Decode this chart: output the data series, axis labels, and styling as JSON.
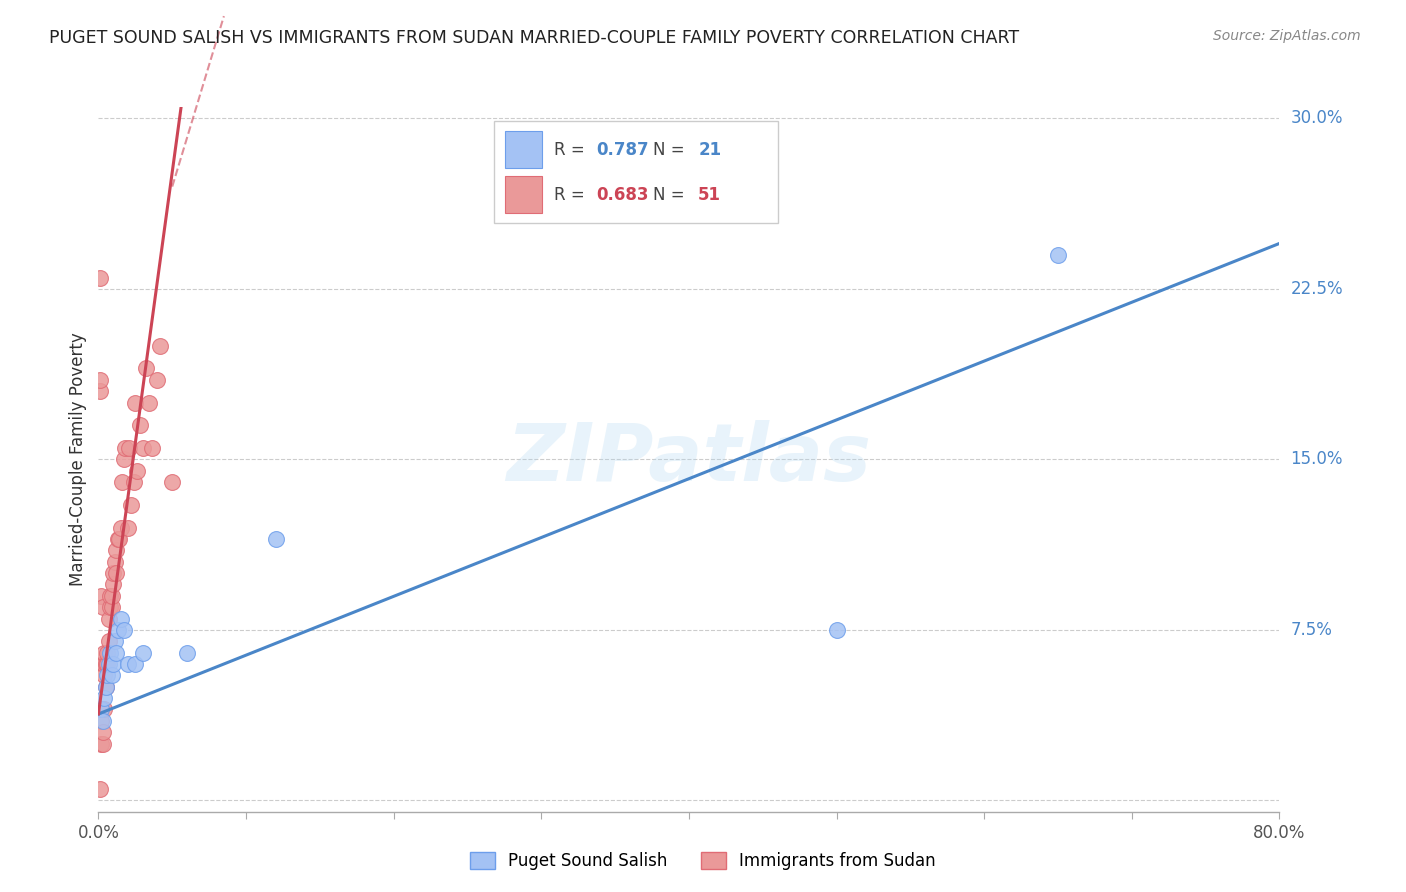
{
  "title": "PUGET SOUND SALISH VS IMMIGRANTS FROM SUDAN MARRIED-COUPLE FAMILY POVERTY CORRELATION CHART",
  "source": "Source: ZipAtlas.com",
  "ylabel": "Married-Couple Family Poverty",
  "watermark": "ZIPatlas",
  "blue_label": "Puget Sound Salish",
  "pink_label": "Immigrants from Sudan",
  "blue_R": "0.787",
  "blue_N": "21",
  "pink_R": "0.683",
  "pink_N": "51",
  "blue_color": "#a4c2f4",
  "pink_color": "#ea9999",
  "blue_edge_color": "#6d9eeb",
  "pink_edge_color": "#e06c75",
  "blue_line_color": "#4a86c8",
  "pink_line_color": "#cc4455",
  "xlim": [
    0.0,
    0.8
  ],
  "ylim": [
    -0.005,
    0.305
  ],
  "xticks": [
    0.0,
    0.1,
    0.2,
    0.3,
    0.4,
    0.5,
    0.6,
    0.7,
    0.8
  ],
  "xtick_labels_show": [
    "0.0%",
    "",
    "",
    "",
    "",
    "",
    "",
    "",
    "80.0%"
  ],
  "ytick_vals": [
    0.0,
    0.075,
    0.15,
    0.225,
    0.3
  ],
  "ytick_labels": [
    "",
    "7.5%",
    "15.0%",
    "22.5%",
    "30.0%"
  ],
  "blue_scatter_x": [
    0.002,
    0.003,
    0.004,
    0.005,
    0.006,
    0.007,
    0.008,
    0.009,
    0.01,
    0.011,
    0.012,
    0.013,
    0.015,
    0.017,
    0.02,
    0.025,
    0.03,
    0.06,
    0.5,
    0.65,
    0.12
  ],
  "blue_scatter_y": [
    0.04,
    0.035,
    0.045,
    0.05,
    0.055,
    0.06,
    0.065,
    0.055,
    0.06,
    0.07,
    0.065,
    0.075,
    0.08,
    0.075,
    0.06,
    0.06,
    0.065,
    0.065,
    0.075,
    0.24,
    0.115
  ],
  "pink_scatter_x": [
    0.001,
    0.001,
    0.001,
    0.002,
    0.002,
    0.002,
    0.002,
    0.003,
    0.003,
    0.003,
    0.003,
    0.004,
    0.004,
    0.004,
    0.004,
    0.005,
    0.005,
    0.006,
    0.006,
    0.007,
    0.007,
    0.008,
    0.008,
    0.009,
    0.009,
    0.01,
    0.01,
    0.011,
    0.012,
    0.012,
    0.013,
    0.014,
    0.015,
    0.016,
    0.017,
    0.018,
    0.02,
    0.021,
    0.022,
    0.024,
    0.025,
    0.026,
    0.028,
    0.03,
    0.032,
    0.034,
    0.036,
    0.04,
    0.042,
    0.05,
    0.001
  ],
  "pink_scatter_y": [
    0.18,
    0.005,
    0.185,
    0.025,
    0.035,
    0.04,
    0.09,
    0.025,
    0.03,
    0.06,
    0.085,
    0.04,
    0.055,
    0.06,
    0.065,
    0.05,
    0.06,
    0.06,
    0.065,
    0.07,
    0.08,
    0.085,
    0.09,
    0.085,
    0.09,
    0.095,
    0.1,
    0.105,
    0.1,
    0.11,
    0.115,
    0.115,
    0.12,
    0.14,
    0.15,
    0.155,
    0.12,
    0.155,
    0.13,
    0.14,
    0.175,
    0.145,
    0.165,
    0.155,
    0.19,
    0.175,
    0.155,
    0.185,
    0.2,
    0.14,
    0.23
  ],
  "blue_line": [
    0.0,
    0.038,
    0.8,
    0.245
  ],
  "pink_line_solid": [
    0.0,
    0.038,
    0.056,
    0.305
  ],
  "pink_line_dashed": [
    0.05,
    0.27,
    0.085,
    0.345
  ]
}
